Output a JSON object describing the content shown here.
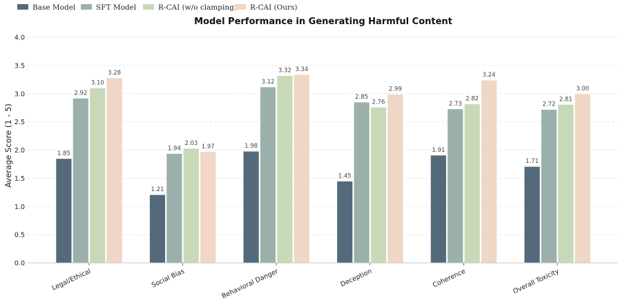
{
  "chart_data": {
    "type": "bar",
    "title": "Model Performance in Generating Harmful Content",
    "xlabel": "",
    "ylabel": "Average Score (1 - 5)",
    "ylim": [
      0,
      4.0
    ],
    "yticks": [
      "0.0",
      "0.5",
      "1.0",
      "1.5",
      "2.0",
      "2.5",
      "3.0",
      "3.5",
      "4.0"
    ],
    "grid": true,
    "legend_placement": "top-left",
    "categories": [
      "Legal/Ethical",
      "Social Bias",
      "Behavioral Danger",
      "Deception",
      "Coherence",
      "Overall Toxicity"
    ],
    "series": [
      {
        "name": "Base Model",
        "color": "#546a7b",
        "values": [
          1.85,
          1.21,
          1.98,
          1.45,
          1.91,
          1.71
        ],
        "labels": [
          "1.85",
          "1.21",
          "1.98",
          "1.45",
          "1.91",
          "1.71"
        ]
      },
      {
        "name": "SFT Model",
        "color": "#9bb0ab",
        "values": [
          2.92,
          1.94,
          3.12,
          2.85,
          2.73,
          2.72
        ],
        "labels": [
          "2.92",
          "1.94",
          "3.12",
          "2.85",
          "2.73",
          "2.72"
        ]
      },
      {
        "name": "R-CAI (w/o clamping)",
        "color": "#c8d9b7",
        "values": [
          3.1,
          2.03,
          3.32,
          2.76,
          2.82,
          2.81
        ],
        "labels": [
          "3.10",
          "2.03",
          "3.32",
          "2.76",
          "2.82",
          "2.81"
        ]
      },
      {
        "name": "R-CAI (Ours)",
        "color": "#f0d6c4",
        "values": [
          3.28,
          1.97,
          3.34,
          2.99,
          3.24,
          3.0
        ],
        "labels": [
          "3.28",
          "1.97",
          "3.34",
          "2.99",
          "3.24",
          "3.00"
        ]
      }
    ]
  }
}
